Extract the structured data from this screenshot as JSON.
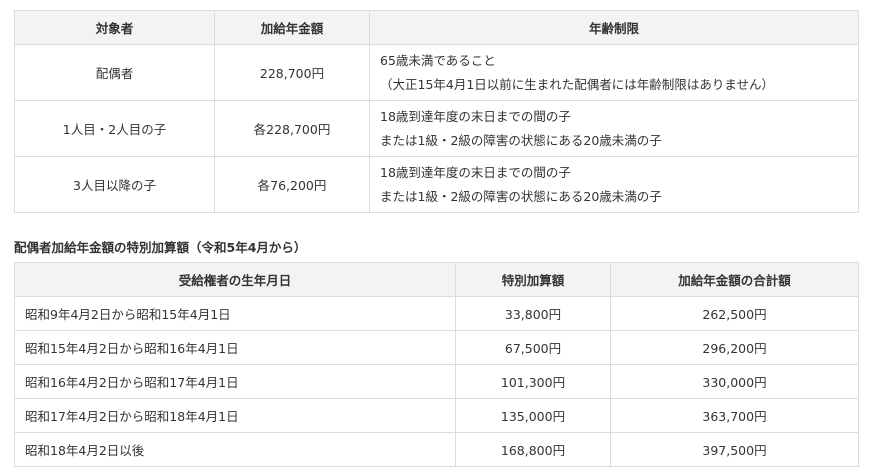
{
  "table1": {
    "headers": [
      "対象者",
      "加給年金額",
      "年齢制限"
    ],
    "rows": [
      {
        "target": "配偶者",
        "amount": "228,700円",
        "limit": [
          "65歳未満であること",
          "（大正15年4月1日以前に生まれた配偶者には年齢制限はありません）"
        ]
      },
      {
        "target": "1人目・2人目の子",
        "amount": "各228,700円",
        "limit": [
          "18歳到達年度の末日までの間の子",
          "または1級・2級の障害の状態にある20歳未満の子"
        ]
      },
      {
        "target": "3人目以降の子",
        "amount": "各76,200円",
        "limit": [
          "18歳到達年度の末日までの間の子",
          "または1級・2級の障害の状態にある20歳未満の子"
        ]
      }
    ]
  },
  "table2": {
    "title": "配偶者加給年金額の特別加算額（令和5年4月から）",
    "headers": [
      "受給権者の生年月日",
      "特別加算額",
      "加給年金額の合計額"
    ],
    "rows": [
      [
        "昭和9年4月2日から昭和15年4月1日",
        "33,800円",
        "262,500円"
      ],
      [
        "昭和15年4月2日から昭和16年4月1日",
        "67,500円",
        "296,200円"
      ],
      [
        "昭和16年4月2日から昭和17年4月1日",
        "101,300円",
        "330,000円"
      ],
      [
        "昭和17年4月2日から昭和18年4月1日",
        "135,000円",
        "363,700円"
      ],
      [
        "昭和18年4月2日以後",
        "168,800円",
        "397,500円"
      ]
    ]
  }
}
